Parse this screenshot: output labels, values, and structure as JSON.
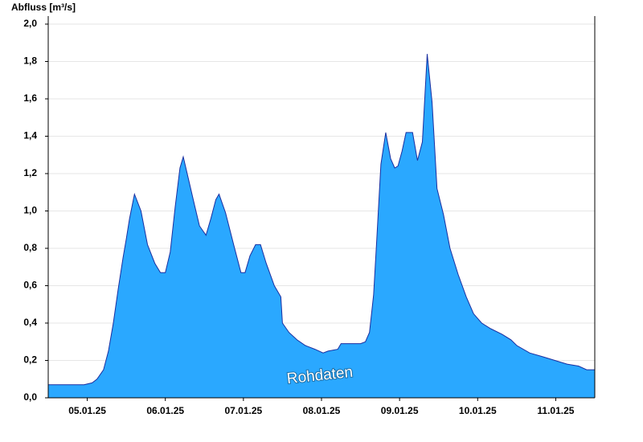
{
  "chart_data": {
    "type": "area",
    "title": "Abfluss [m³/s]",
    "annotation": "Rohdaten",
    "color": "#2aa8ff",
    "line_color": "#1a2fa0",
    "x": [
      "2025-01-05T00:00",
      "2025-01-05T11:00",
      "2025-01-05T13:30",
      "2025-01-05T15:00",
      "2025-01-05T17:00",
      "2025-01-05T18:30",
      "2025-01-05T20:00",
      "2025-01-05T21:30",
      "2025-01-05T23:00",
      "2025-01-06T00:00",
      "2025-01-06T01:00",
      "2025-01-06T02:30",
      "2025-01-06T04:30",
      "2025-01-06T06:30",
      "2025-01-06T08:45",
      "2025-01-06T10:30",
      "2025-01-06T12:00",
      "2025-01-06T13:30",
      "2025-01-06T15:00",
      "2025-01-06T16:30",
      "2025-01-06T17:30",
      "2025-01-06T19:00",
      "2025-01-06T21:00",
      "2025-01-06T22:30",
      "2025-01-07T00:30",
      "2025-01-07T02:00",
      "2025-01-07T03:30",
      "2025-01-07T04:30",
      "2025-01-07T06:30",
      "2025-01-07T09:00",
      "2025-01-07T11:15",
      "2025-01-07T12:30",
      "2025-01-07T14:00",
      "2025-01-07T15:45",
      "2025-01-07T17:15",
      "2025-01-07T19:00",
      "2025-01-07T21:30",
      "2025-01-07T23:30",
      "2025-01-08T00:00",
      "2025-01-08T02:00",
      "2025-01-08T04:30",
      "2025-01-08T07:00",
      "2025-01-08T10:00",
      "2025-01-08T12:30",
      "2025-01-08T14:00",
      "2025-01-08T17:00",
      "2025-01-08T18:00",
      "2025-01-09T00:00",
      "2025-01-09T01:30",
      "2025-01-09T02:45",
      "2025-01-09T04:00",
      "2025-01-09T05:00",
      "2025-01-09T06:15",
      "2025-01-09T07:45",
      "2025-01-09T09:15",
      "2025-01-09T10:30",
      "2025-01-09T11:30",
      "2025-01-09T12:45",
      "2025-01-09T14:00",
      "2025-01-09T16:00",
      "2025-01-09T17:30",
      "2025-01-09T19:00",
      "2025-01-09T20:30",
      "2025-01-09T22:00",
      "2025-01-09T23:30",
      "2025-01-10T01:30",
      "2025-01-10T03:30",
      "2025-01-10T06:00",
      "2025-01-10T08:30",
      "2025-01-10T10:45",
      "2025-01-10T13:15",
      "2025-01-10T16:00",
      "2025-01-10T19:30",
      "2025-01-10T22:15",
      "2025-01-11T00:00",
      "2025-01-11T04:00",
      "2025-01-11T08:00",
      "2025-01-11T11:45",
      "2025-01-11T15:30",
      "2025-01-11T19:00",
      "2025-01-11T21:30",
      "2025-01-12T00:00"
    ],
    "values": [
      0.07,
      0.07,
      0.08,
      0.1,
      0.15,
      0.25,
      0.4,
      0.58,
      0.75,
      0.85,
      0.96,
      1.09,
      1.0,
      0.82,
      0.72,
      0.67,
      0.67,
      0.78,
      1.02,
      1.23,
      1.29,
      1.18,
      1.03,
      0.92,
      0.87,
      0.96,
      1.06,
      1.09,
      0.99,
      0.82,
      0.67,
      0.67,
      0.76,
      0.82,
      0.82,
      0.72,
      0.6,
      0.54,
      0.4,
      0.35,
      0.31,
      0.28,
      0.26,
      0.24,
      0.25,
      0.26,
      0.29,
      0.29,
      0.3,
      0.35,
      0.55,
      0.85,
      1.25,
      1.42,
      1.28,
      1.23,
      1.24,
      1.32,
      1.42,
      1.42,
      1.27,
      1.37,
      1.84,
      1.58,
      1.12,
      0.98,
      0.8,
      0.66,
      0.54,
      0.45,
      0.4,
      0.37,
      0.34,
      0.31,
      0.28,
      0.24,
      0.22,
      0.2,
      0.18,
      0.17,
      0.15,
      0.15
    ],
    "xlim": [
      "2025-01-05T00:00",
      "2025-01-12T00:00"
    ],
    "xticks": [
      {
        "value": "2025-01-05T12:00",
        "label": "05.01.25"
      },
      {
        "value": "2025-01-06T12:00",
        "label": "06.01.25"
      },
      {
        "value": "2025-01-07T12:00",
        "label": "07.01.25"
      },
      {
        "value": "2025-01-08T12:00",
        "label": "08.01.25"
      },
      {
        "value": "2025-01-09T12:00",
        "label": "09.01.25"
      },
      {
        "value": "2025-01-10T12:00",
        "label": "10.01.25"
      },
      {
        "value": "2025-01-11T12:00",
        "label": "11.01.25"
      }
    ],
    "ylim": [
      0,
      2
    ],
    "yticks": [
      {
        "value": 0,
        "label": "0,0"
      },
      {
        "value": 0.2,
        "label": "0,2"
      },
      {
        "value": 0.4,
        "label": "0,4"
      },
      {
        "value": 0.6,
        "label": "0,6"
      },
      {
        "value": 0.8,
        "label": "0,8"
      },
      {
        "value": 1,
        "label": "1,0"
      },
      {
        "value": 1.2,
        "label": "1,2"
      },
      {
        "value": 1.4,
        "label": "1,4"
      },
      {
        "value": 1.6,
        "label": "1,6"
      },
      {
        "value": 1.8,
        "label": "1,8"
      },
      {
        "value": 2,
        "label": "2,0"
      }
    ],
    "grid": true
  }
}
